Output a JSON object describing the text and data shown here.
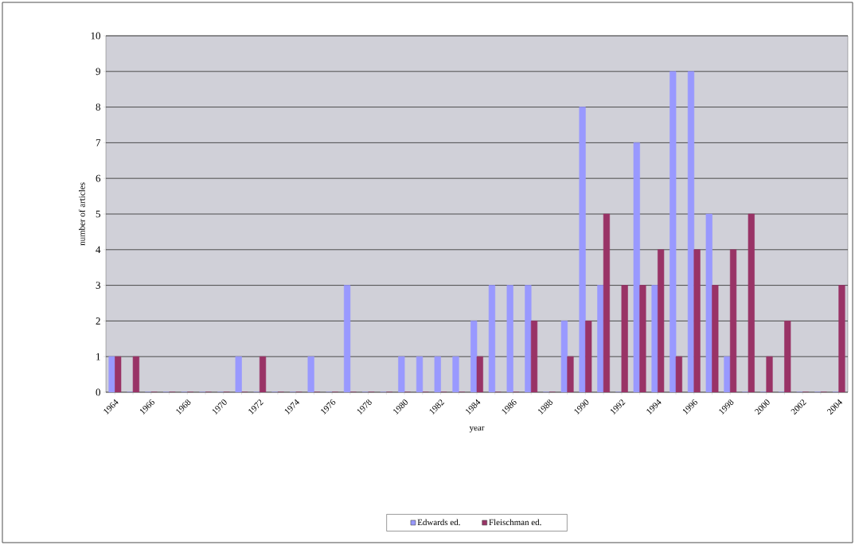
{
  "chart_data": {
    "type": "bar",
    "xlabel": "year",
    "ylabel": "number of articles",
    "categories": [
      "1964",
      null,
      "1966",
      null,
      "1968",
      null,
      "1970",
      null,
      "1972",
      null,
      "1974",
      null,
      "1976",
      null,
      "1978",
      null,
      "1980",
      null,
      "1982",
      null,
      "1984",
      null,
      "1986",
      null,
      "1988",
      null,
      "1990",
      null,
      "1992",
      null,
      "1994",
      null,
      "1996",
      null,
      "1998",
      null,
      "2000",
      null,
      "2002",
      null,
      "2004"
    ],
    "series": [
      {
        "name": "Edwards ed.",
        "color": "#9999ff",
        "values": [
          1,
          0,
          0,
          0,
          0,
          0,
          0,
          1,
          0,
          0,
          0,
          1,
          0,
          3,
          0,
          0,
          1,
          1,
          1,
          1,
          2,
          3,
          3,
          3,
          0,
          2,
          8,
          3,
          0,
          7,
          3,
          9,
          9,
          5,
          1,
          0,
          0,
          0,
          0,
          0,
          0
        ]
      },
      {
        "name": "Fleischman ed.",
        "color": "#993366",
        "values": [
          1,
          1,
          0,
          0,
          0,
          0,
          0,
          0,
          1,
          0,
          0,
          0,
          0,
          0,
          0,
          0,
          0,
          0,
          0,
          0,
          1,
          0,
          0,
          2,
          0,
          1,
          2,
          5,
          3,
          3,
          4,
          1,
          4,
          3,
          4,
          5,
          1,
          2,
          0,
          0,
          3
        ]
      }
    ],
    "ylim": [
      0,
      10
    ],
    "yticks": [
      0,
      1,
      2,
      3,
      4,
      5,
      6,
      7,
      8,
      9,
      10
    ],
    "grid": "y",
    "legend": "bottom"
  }
}
